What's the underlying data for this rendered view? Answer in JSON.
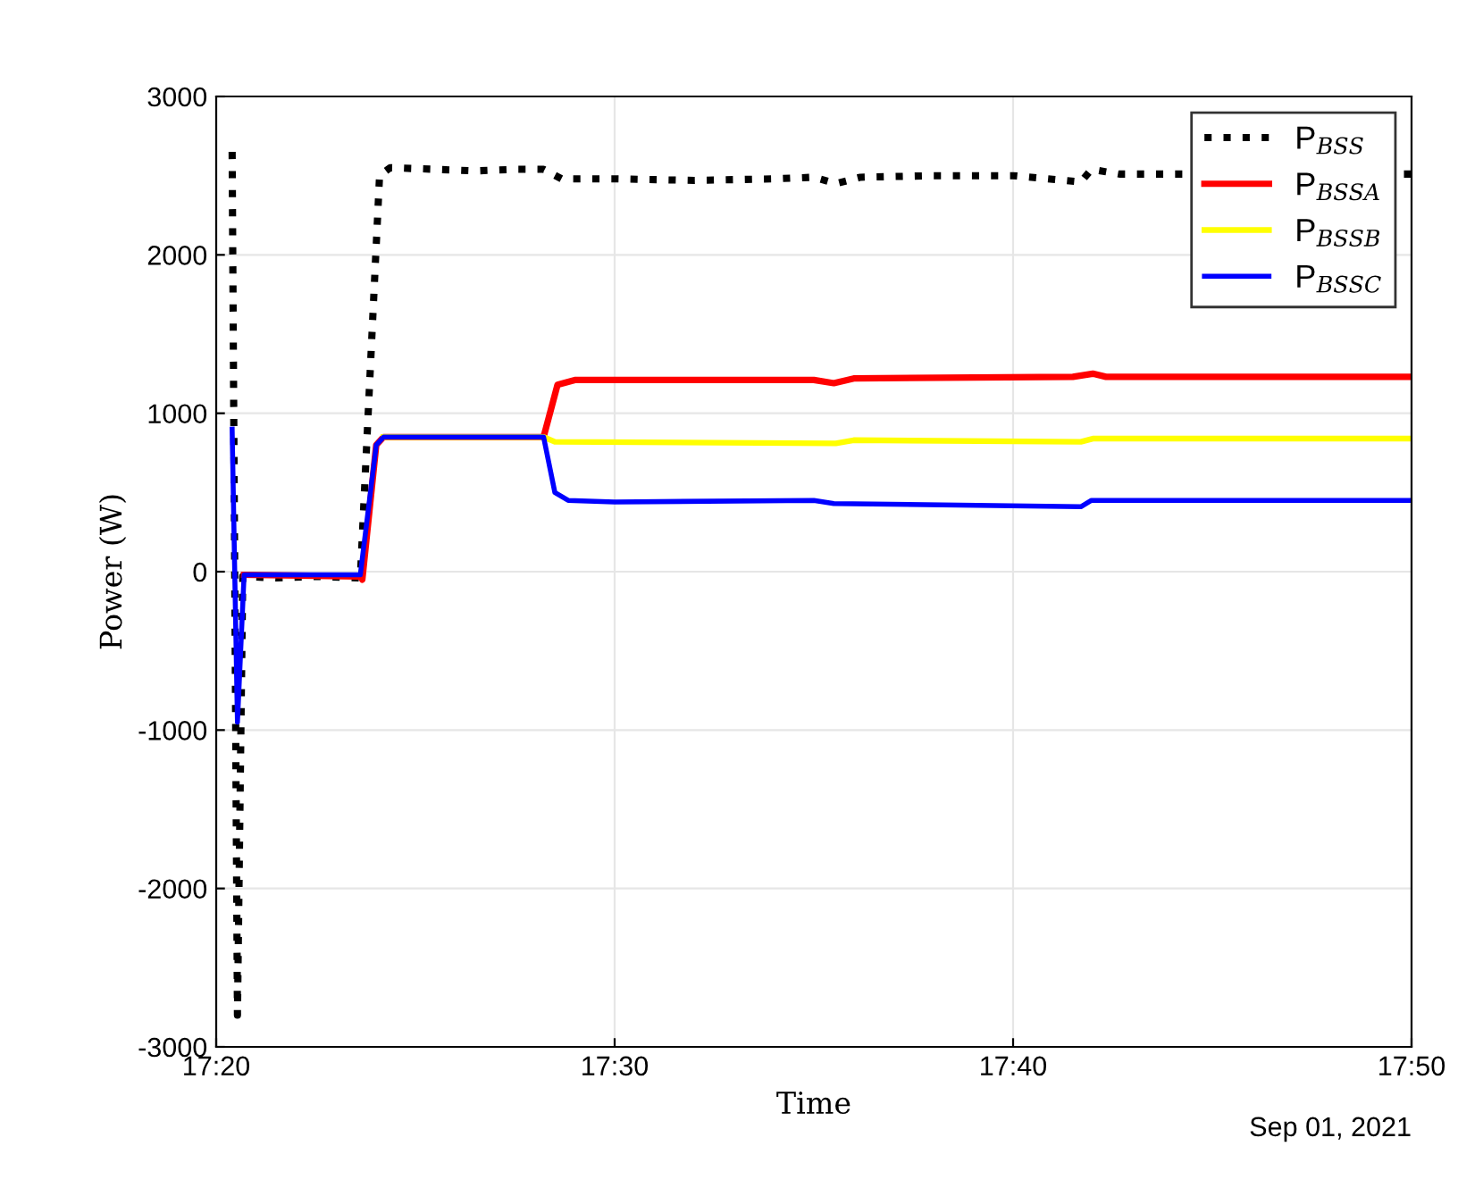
{
  "chart_data": {
    "type": "line",
    "xlabel": "Time",
    "ylabel": "Power (W)",
    "annotations": [
      "Sep 01, 2021"
    ],
    "xlim": [
      "2021-09-01T17:20",
      "2021-09-01T17:50"
    ],
    "xticks": [
      {
        "value": "2021-09-01T17:20",
        "label": "17:20"
      },
      {
        "value": "2021-09-01T17:30",
        "label": "17:30"
      },
      {
        "value": "2021-09-01T17:40",
        "label": "17:40"
      },
      {
        "value": "2021-09-01T17:50",
        "label": "17:50"
      }
    ],
    "ylim": [
      -3000,
      3000
    ],
    "yticks": [
      -3000,
      -2000,
      -1000,
      0,
      1000,
      2000,
      3000
    ],
    "grid": true,
    "legend": "top right",
    "series": [
      {
        "name": "P$_{BSS}$",
        "color": "#000000",
        "line_style": "dotted",
        "x": [
          "2021-09-01T17:20:24",
          "2021-09-01T17:20:32",
          "2021-09-01T17:20:40",
          "2021-09-01T17:21:30",
          "2021-09-01T17:22:30",
          "2021-09-01T17:23:37",
          "2021-09-01T17:24:06",
          "2021-09-01T17:24:22",
          "2021-09-01T17:25:30",
          "2021-09-01T17:26:30",
          "2021-09-01T17:27:30",
          "2021-09-01T17:28:13",
          "2021-09-01T17:28:40",
          "2021-09-01T17:30:00",
          "2021-09-01T17:32:00",
          "2021-09-01T17:34:00",
          "2021-09-01T17:35:00",
          "2021-09-01T17:35:33",
          "2021-09-01T17:36:10",
          "2021-09-01T17:38:00",
          "2021-09-01T17:40:00",
          "2021-09-01T17:41:42",
          "2021-09-01T17:41:58",
          "2021-09-01T17:42:40",
          "2021-09-01T17:50:00"
        ],
        "values": [
          2650,
          -2800,
          -30,
          -40,
          -30,
          -40,
          2500,
          2550,
          2540,
          2530,
          2540,
          2540,
          2480,
          2480,
          2470,
          2480,
          2490,
          2450,
          2490,
          2500,
          2500,
          2460,
          2540,
          2510,
          2510
        ]
      },
      {
        "name": "P$_{BSSA}$",
        "color": "#ff0000",
        "line_style": "solid",
        "x": [
          "2021-09-01T17:20:42",
          "2021-09-01T17:23:37",
          "2021-09-01T17:23:40",
          "2021-09-01T17:24:01",
          "2021-09-01T17:24:12",
          "2021-09-01T17:28:13",
          "2021-09-01T17:28:34",
          "2021-09-01T17:29:00",
          "2021-09-01T17:35:00",
          "2021-09-01T17:35:30",
          "2021-09-01T17:36:00",
          "2021-09-01T17:41:30",
          "2021-09-01T17:42:00",
          "2021-09-01T17:42:20",
          "2021-09-01T17:50:00"
        ],
        "values": [
          -20,
          -30,
          -50,
          800,
          850,
          850,
          1180,
          1210,
          1210,
          1190,
          1220,
          1230,
          1250,
          1230,
          1230
        ]
      },
      {
        "name": "P$_{BSSB}$",
        "color": "#ffff00",
        "line_style": "solid",
        "x": [
          "2021-09-01T17:24:12",
          "2021-09-01T17:28:13",
          "2021-09-01T17:28:30",
          "2021-09-01T17:35:33",
          "2021-09-01T17:36:00",
          "2021-09-01T17:41:42",
          "2021-09-01T17:42:00",
          "2021-09-01T17:50:00"
        ],
        "values": [
          850,
          850,
          820,
          810,
          830,
          820,
          840,
          840
        ]
      },
      {
        "name": "P$_{BSSC}$",
        "color": "#0000ff",
        "line_style": "solid",
        "x": [
          "2021-09-01T17:20:24",
          "2021-09-01T17:20:32",
          "2021-09-01T17:20:42",
          "2021-09-01T17:23:37",
          "2021-09-01T17:24:01",
          "2021-09-01T17:24:12",
          "2021-09-01T17:28:13",
          "2021-09-01T17:28:30",
          "2021-09-01T17:28:50",
          "2021-09-01T17:30:00",
          "2021-09-01T17:35:00",
          "2021-09-01T17:35:30",
          "2021-09-01T17:41:42",
          "2021-09-01T17:41:58",
          "2021-09-01T17:50:00"
        ],
        "values": [
          900,
          -950,
          -20,
          -20,
          800,
          850,
          850,
          500,
          450,
          440,
          450,
          430,
          410,
          450,
          450
        ]
      }
    ]
  }
}
